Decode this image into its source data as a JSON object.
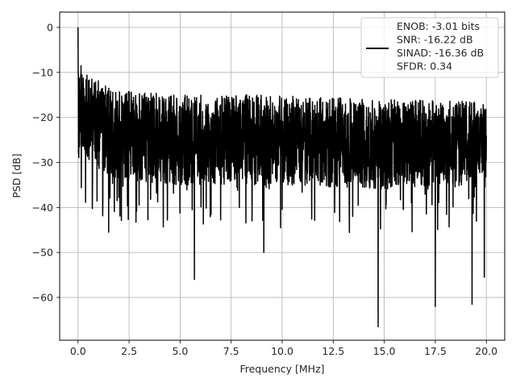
{
  "chart_data": {
    "type": "line",
    "xlabel": "Frequency [MHz]",
    "ylabel": "PSD [dB]",
    "xlim": [
      -0.9,
      20.9
    ],
    "ylim": [
      -69.5,
      3.4
    ],
    "grid": true,
    "x_ticks": [
      0.0,
      2.5,
      5.0,
      7.5,
      10.0,
      12.5,
      15.0,
      17.5,
      20.0
    ],
    "x_tick_labels": [
      "0.0",
      "2.5",
      "5.0",
      "7.5",
      "10.0",
      "12.5",
      "15.0",
      "17.5",
      "20.0"
    ],
    "y_ticks": [
      0,
      -10,
      -20,
      -30,
      -40,
      -50,
      -60
    ],
    "y_tick_labels": [
      "0",
      "−10",
      "−20",
      "−30",
      "−40",
      "−50",
      "−60"
    ],
    "legend": {
      "placement": "upper right",
      "entries": [
        "ENOB: -3.01 bits",
        "SNR: -16.22 dB",
        "SINAD: -16.36 dB",
        "SFDR: 0.34"
      ]
    },
    "series": [
      {
        "color": "#000000",
        "x_range": [
          0.0,
          20.0
        ],
        "notable_points": [
          {
            "x": 0.0,
            "y": 0.0
          },
          {
            "x": 0.05,
            "y": -23
          },
          {
            "x": 0.15,
            "y": -8.5
          },
          {
            "x": 1.5,
            "y": -45.5
          },
          {
            "x": 5.7,
            "y": -56
          },
          {
            "x": 9.1,
            "y": -50
          },
          {
            "x": 14.7,
            "y": -66.5
          },
          {
            "x": 17.5,
            "y": -62
          },
          {
            "x": 19.3,
            "y": -61.5
          },
          {
            "x": 19.9,
            "y": -55.5
          },
          {
            "x": 20.0,
            "y": -24
          }
        ],
        "envelope": {
          "upper": [
            [
              0.2,
              -10
            ],
            [
              2.0,
              -14
            ],
            [
              5.0,
              -15
            ],
            [
              10.0,
              -15
            ],
            [
              15.0,
              -16
            ],
            [
              20.0,
              -16.5
            ]
          ],
          "lower": [
            [
              0.2,
              -30
            ],
            [
              2.0,
              -34
            ],
            [
              5.0,
              -35
            ],
            [
              10.0,
              -35
            ],
            [
              15.0,
              -36
            ],
            [
              20.0,
              -34
            ]
          ]
        }
      }
    ]
  }
}
